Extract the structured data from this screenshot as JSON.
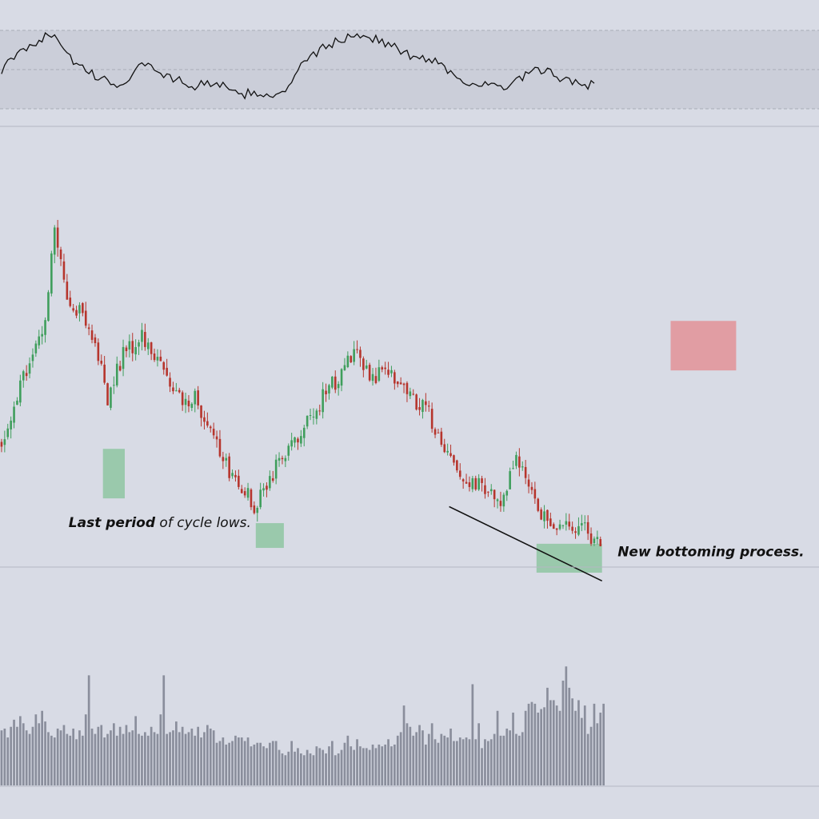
{
  "chart_data": {
    "type": "candlestick",
    "title": "",
    "xlabel": "",
    "ylabel": "",
    "grid": false,
    "legend": "none",
    "colors": {
      "background": "#d8dbe5",
      "up": "#3f9e5c",
      "down": "#b6352d",
      "zone_green": "#8fc5a2",
      "zone_red": "#e29a9f",
      "oscillator_band": "#cbced9",
      "oscillator_line": "#111111",
      "volume": "#8a8e9c",
      "divider": "#b4b7c2",
      "trendline": "#111111"
    },
    "price_panel": {
      "ylim": [
        0,
        100
      ],
      "anchors": [
        [
          0,
          32
        ],
        [
          14,
          62
        ],
        [
          17,
          85
        ],
        [
          20,
          69
        ],
        [
          29,
          58
        ],
        [
          34,
          42
        ],
        [
          39,
          53
        ],
        [
          45,
          57
        ],
        [
          56,
          43
        ],
        [
          62,
          42
        ],
        [
          72,
          26
        ],
        [
          78,
          20
        ],
        [
          81,
          16
        ],
        [
          87,
          24
        ],
        [
          100,
          39
        ],
        [
          113,
          53
        ],
        [
          118,
          48
        ],
        [
          126,
          48
        ],
        [
          137,
          38
        ],
        [
          140,
          34
        ],
        [
          147,
          23
        ],
        [
          160,
          18
        ],
        [
          165,
          27
        ],
        [
          169,
          20
        ],
        [
          173,
          13
        ],
        [
          187,
          10
        ],
        [
          192,
          7
        ]
      ],
      "zones": [
        {
          "kind": "green",
          "x": [
            33,
            40
          ],
          "y": [
            18,
            30
          ]
        },
        {
          "kind": "green",
          "x": [
            82,
            91
          ],
          "y": [
            6,
            12
          ]
        },
        {
          "kind": "green",
          "x": [
            172,
            193
          ],
          "y": [
            0,
            7
          ]
        },
        {
          "kind": "red",
          "x": [
            215,
            236
          ],
          "y": [
            49,
            61
          ]
        }
      ],
      "trendline": {
        "from": [
          144,
          16
        ],
        "to": [
          193,
          -2
        ]
      },
      "annotations": [
        {
          "id": "last_period",
          "x": 22,
          "y": 11,
          "bold": "Last period",
          "light": " of cycle lows."
        },
        {
          "id": "new_bottoming",
          "x": 198,
          "y": 4,
          "bold": "New bottoming process.",
          "light": ""
        }
      ]
    },
    "oscillator_panel": {
      "ylim": [
        0,
        100
      ],
      "band": [
        0,
        100
      ],
      "midline": 50,
      "anchors": [
        [
          0,
          50
        ],
        [
          9,
          82
        ],
        [
          17,
          97
        ],
        [
          24,
          55
        ],
        [
          32,
          37
        ],
        [
          39,
          30
        ],
        [
          45,
          60
        ],
        [
          53,
          42
        ],
        [
          62,
          28
        ],
        [
          69,
          36
        ],
        [
          74,
          18
        ],
        [
          82,
          20
        ],
        [
          90,
          17
        ],
        [
          98,
          64
        ],
        [
          106,
          84
        ],
        [
          116,
          96
        ],
        [
          124,
          82
        ],
        [
          133,
          64
        ],
        [
          140,
          62
        ],
        [
          146,
          38
        ],
        [
          155,
          30
        ],
        [
          162,
          26
        ],
        [
          170,
          48
        ],
        [
          176,
          46
        ],
        [
          183,
          32
        ],
        [
          190,
          30
        ]
      ]
    },
    "volume_panel": {
      "ylim": [
        0,
        100
      ],
      "values": [
        31,
        32,
        27,
        33,
        37,
        33,
        39,
        35,
        31,
        29,
        33,
        40,
        35,
        42,
        36,
        30,
        28,
        27,
        32,
        31,
        34,
        29,
        28,
        32,
        26,
        31,
        28,
        40,
        62,
        32,
        29,
        33,
        34,
        27,
        29,
        31,
        35,
        28,
        33,
        29,
        34,
        30,
        31,
        39,
        29,
        28,
        30,
        28,
        33,
        30,
        29,
        40,
        62,
        29,
        30,
        31,
        36,
        30,
        33,
        29,
        30,
        32,
        28,
        33,
        27,
        30,
        34,
        32,
        31,
        24,
        25,
        27,
        23,
        24,
        25,
        28,
        27,
        27,
        25,
        27,
        22,
        23,
        24,
        24,
        22,
        21,
        24,
        25,
        25,
        20,
        18,
        17,
        19,
        25,
        19,
        21,
        18,
        17,
        20,
        18,
        17,
        22,
        21,
        20,
        18,
        22,
        25,
        17,
        18,
        20,
        24,
        28,
        22,
        20,
        26,
        22,
        21,
        21,
        20,
        23,
        21,
        23,
        22,
        23,
        26,
        22,
        23,
        28,
        30,
        45,
        35,
        33,
        28,
        30,
        34,
        31,
        23,
        29,
        35,
        26,
        24,
        29,
        28,
        27,
        32,
        25,
        25,
        27,
        26,
        27,
        26,
        57,
        26,
        35,
        21,
        26,
        25,
        26,
        29,
        42,
        28,
        28,
        32,
        31,
        41,
        29,
        28,
        30,
        42,
        46,
        47,
        46,
        41,
        43,
        44,
        55,
        48,
        48,
        45,
        42,
        59,
        67,
        55,
        49,
        42,
        48,
        38,
        45,
        29,
        33,
        46,
        35,
        41,
        46
      ]
    }
  }
}
